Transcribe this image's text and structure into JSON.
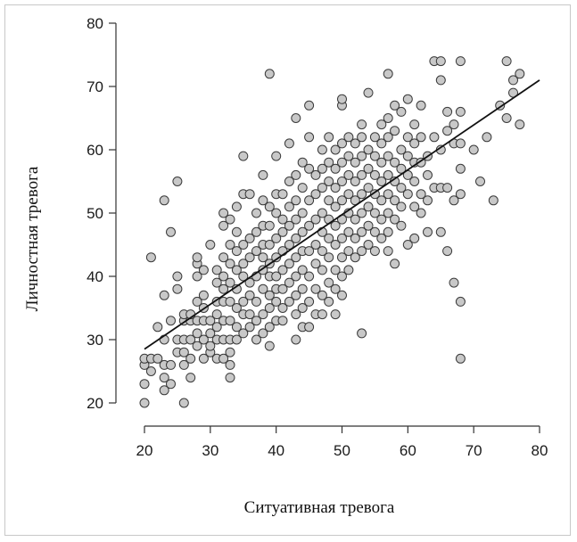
{
  "chart_data": {
    "type": "scatter",
    "xlabel": "Ситуативная тревога",
    "ylabel": "Личностная тревога",
    "xlim": [
      20,
      80
    ],
    "ylim": [
      20,
      80
    ],
    "xticks": [
      "20",
      "30",
      "40",
      "50",
      "60",
      "70",
      "80"
    ],
    "yticks": [
      "20",
      "30",
      "40",
      "50",
      "60",
      "70",
      "80"
    ],
    "grid": false,
    "legend": "none",
    "point_color": "#c8c8c8",
    "point_edge_color": "#3a3a3a",
    "trend_line": {
      "x": [
        20,
        80
      ],
      "y": [
        28.5,
        71
      ]
    },
    "points": [
      [
        20,
        20
      ],
      [
        20,
        23
      ],
      [
        20,
        26
      ],
      [
        20,
        27
      ],
      [
        21,
        25
      ],
      [
        21,
        27
      ],
      [
        21,
        43
      ],
      [
        22,
        27
      ],
      [
        22,
        32
      ],
      [
        23,
        22
      ],
      [
        23,
        24
      ],
      [
        23,
        26
      ],
      [
        23,
        30
      ],
      [
        23,
        37
      ],
      [
        23,
        52
      ],
      [
        24,
        23
      ],
      [
        24,
        26
      ],
      [
        24,
        33
      ],
      [
        24,
        47
      ],
      [
        25,
        28
      ],
      [
        25,
        30
      ],
      [
        25,
        38
      ],
      [
        25,
        40
      ],
      [
        25,
        55
      ],
      [
        26,
        20
      ],
      [
        26,
        26
      ],
      [
        26,
        28
      ],
      [
        26,
        30
      ],
      [
        26,
        33
      ],
      [
        26,
        34
      ],
      [
        27,
        24
      ],
      [
        27,
        27
      ],
      [
        27,
        30
      ],
      [
        27,
        33
      ],
      [
        27,
        34
      ],
      [
        28,
        29
      ],
      [
        28,
        31
      ],
      [
        28,
        33
      ],
      [
        28,
        36
      ],
      [
        28,
        40
      ],
      [
        28,
        42
      ],
      [
        28,
        43
      ],
      [
        29,
        27
      ],
      [
        29,
        30
      ],
      [
        29,
        33
      ],
      [
        29,
        35
      ],
      [
        29,
        37
      ],
      [
        29,
        41
      ],
      [
        30,
        28
      ],
      [
        30,
        29
      ],
      [
        30,
        31
      ],
      [
        30,
        33
      ],
      [
        30,
        45
      ],
      [
        31,
        27
      ],
      [
        31,
        30
      ],
      [
        31,
        32
      ],
      [
        31,
        34
      ],
      [
        31,
        36
      ],
      [
        31,
        39
      ],
      [
        31,
        41
      ],
      [
        32,
        27
      ],
      [
        32,
        30
      ],
      [
        32,
        33
      ],
      [
        32,
        36
      ],
      [
        32,
        38
      ],
      [
        32,
        40
      ],
      [
        32,
        43
      ],
      [
        32,
        48
      ],
      [
        32,
        50
      ],
      [
        33,
        24
      ],
      [
        33,
        26
      ],
      [
        33,
        28
      ],
      [
        33,
        30
      ],
      [
        33,
        33
      ],
      [
        33,
        36
      ],
      [
        33,
        39
      ],
      [
        33,
        42
      ],
      [
        33,
        45
      ],
      [
        33,
        49
      ],
      [
        34,
        30
      ],
      [
        34,
        32
      ],
      [
        34,
        35
      ],
      [
        34,
        38
      ],
      [
        34,
        41
      ],
      [
        34,
        44
      ],
      [
        34,
        47
      ],
      [
        34,
        51
      ],
      [
        35,
        31
      ],
      [
        35,
        34
      ],
      [
        35,
        36
      ],
      [
        35,
        40
      ],
      [
        35,
        42
      ],
      [
        35,
        45
      ],
      [
        35,
        53
      ],
      [
        35,
        59
      ],
      [
        36,
        32
      ],
      [
        36,
        34
      ],
      [
        36,
        37
      ],
      [
        36,
        39
      ],
      [
        36,
        43
      ],
      [
        36,
        46
      ],
      [
        36,
        53
      ],
      [
        37,
        30
      ],
      [
        37,
        33
      ],
      [
        37,
        36
      ],
      [
        37,
        40
      ],
      [
        37,
        44
      ],
      [
        37,
        47
      ],
      [
        37,
        50
      ],
      [
        38,
        31
      ],
      [
        38,
        34
      ],
      [
        38,
        38
      ],
      [
        38,
        41
      ],
      [
        38,
        43
      ],
      [
        38,
        45
      ],
      [
        38,
        48
      ],
      [
        38,
        52
      ],
      [
        38,
        56
      ],
      [
        39,
        29
      ],
      [
        39,
        32
      ],
      [
        39,
        35
      ],
      [
        39,
        37
      ],
      [
        39,
        40
      ],
      [
        39,
        42
      ],
      [
        39,
        45
      ],
      [
        39,
        48
      ],
      [
        39,
        51
      ],
      [
        39,
        72
      ],
      [
        40,
        33
      ],
      [
        40,
        36
      ],
      [
        40,
        38
      ],
      [
        40,
        40
      ],
      [
        40,
        43
      ],
      [
        40,
        46
      ],
      [
        40,
        50
      ],
      [
        40,
        53
      ],
      [
        40,
        59
      ],
      [
        41,
        33
      ],
      [
        41,
        35
      ],
      [
        41,
        38
      ],
      [
        41,
        41
      ],
      [
        41,
        44
      ],
      [
        41,
        47
      ],
      [
        41,
        49
      ],
      [
        41,
        53
      ],
      [
        42,
        36
      ],
      [
        42,
        39
      ],
      [
        42,
        42
      ],
      [
        42,
        45
      ],
      [
        42,
        48
      ],
      [
        42,
        51
      ],
      [
        42,
        55
      ],
      [
        42,
        61
      ],
      [
        43,
        30
      ],
      [
        43,
        34
      ],
      [
        43,
        37
      ],
      [
        43,
        40
      ],
      [
        43,
        43
      ],
      [
        43,
        46
      ],
      [
        43,
        49
      ],
      [
        43,
        52
      ],
      [
        43,
        56
      ],
      [
        43,
        65
      ],
      [
        44,
        32
      ],
      [
        44,
        35
      ],
      [
        44,
        38
      ],
      [
        44,
        41
      ],
      [
        44,
        44
      ],
      [
        44,
        47
      ],
      [
        44,
        50
      ],
      [
        44,
        54
      ],
      [
        44,
        58
      ],
      [
        45,
        32
      ],
      [
        45,
        36
      ],
      [
        45,
        40
      ],
      [
        45,
        44
      ],
      [
        45,
        48
      ],
      [
        45,
        52
      ],
      [
        45,
        57
      ],
      [
        45,
        62
      ],
      [
        45,
        67
      ],
      [
        46,
        34
      ],
      [
        46,
        38
      ],
      [
        46,
        42
      ],
      [
        46,
        45
      ],
      [
        46,
        49
      ],
      [
        46,
        53
      ],
      [
        46,
        56
      ],
      [
        47,
        34
      ],
      [
        47,
        37
      ],
      [
        47,
        41
      ],
      [
        47,
        44
      ],
      [
        47,
        47
      ],
      [
        47,
        50
      ],
      [
        47,
        54
      ],
      [
        47,
        57
      ],
      [
        47,
        60
      ],
      [
        48,
        36
      ],
      [
        48,
        39
      ],
      [
        48,
        43
      ],
      [
        48,
        46
      ],
      [
        48,
        49
      ],
      [
        48,
        52
      ],
      [
        48,
        55
      ],
      [
        48,
        58
      ],
      [
        48,
        62
      ],
      [
        49,
        34
      ],
      [
        49,
        38
      ],
      [
        49,
        41
      ],
      [
        49,
        45
      ],
      [
        49,
        48
      ],
      [
        49,
        51
      ],
      [
        49,
        54
      ],
      [
        49,
        57
      ],
      [
        49,
        60
      ],
      [
        50,
        37
      ],
      [
        50,
        40
      ],
      [
        50,
        43
      ],
      [
        50,
        46
      ],
      [
        50,
        49
      ],
      [
        50,
        52
      ],
      [
        50,
        55
      ],
      [
        50,
        58
      ],
      [
        50,
        61
      ],
      [
        50,
        67
      ],
      [
        50,
        68
      ],
      [
        51,
        41
      ],
      [
        51,
        44
      ],
      [
        51,
        47
      ],
      [
        51,
        50
      ],
      [
        51,
        53
      ],
      [
        51,
        56
      ],
      [
        51,
        59
      ],
      [
        51,
        62
      ],
      [
        52,
        43
      ],
      [
        52,
        46
      ],
      [
        52,
        49
      ],
      [
        52,
        52
      ],
      [
        52,
        55
      ],
      [
        52,
        58
      ],
      [
        52,
        61
      ],
      [
        53,
        31
      ],
      [
        53,
        44
      ],
      [
        53,
        47
      ],
      [
        53,
        50
      ],
      [
        53,
        53
      ],
      [
        53,
        56
      ],
      [
        53,
        59
      ],
      [
        53,
        62
      ],
      [
        53,
        64
      ],
      [
        54,
        45
      ],
      [
        54,
        48
      ],
      [
        54,
        51
      ],
      [
        54,
        54
      ],
      [
        54,
        57
      ],
      [
        54,
        60
      ],
      [
        54,
        69
      ],
      [
        55,
        44
      ],
      [
        55,
        47
      ],
      [
        55,
        50
      ],
      [
        55,
        53
      ],
      [
        55,
        56
      ],
      [
        55,
        59
      ],
      [
        55,
        62
      ],
      [
        56,
        46
      ],
      [
        56,
        49
      ],
      [
        56,
        52
      ],
      [
        56,
        55
      ],
      [
        56,
        58
      ],
      [
        56,
        61
      ],
      [
        56,
        64
      ],
      [
        57,
        44
      ],
      [
        57,
        47
      ],
      [
        57,
        50
      ],
      [
        57,
        53
      ],
      [
        57,
        56
      ],
      [
        57,
        59
      ],
      [
        57,
        62
      ],
      [
        57,
        65
      ],
      [
        57,
        72
      ],
      [
        58,
        42
      ],
      [
        58,
        49
      ],
      [
        58,
        52
      ],
      [
        58,
        55
      ],
      [
        58,
        58
      ],
      [
        58,
        63
      ],
      [
        58,
        67
      ],
      [
        59,
        48
      ],
      [
        59,
        51
      ],
      [
        59,
        54
      ],
      [
        59,
        57
      ],
      [
        59,
        60
      ],
      [
        59,
        66
      ],
      [
        60,
        45
      ],
      [
        60,
        53
      ],
      [
        60,
        56
      ],
      [
        60,
        59
      ],
      [
        60,
        62
      ],
      [
        60,
        68
      ],
      [
        61,
        46
      ],
      [
        61,
        51
      ],
      [
        61,
        55
      ],
      [
        61,
        58
      ],
      [
        61,
        61
      ],
      [
        61,
        64
      ],
      [
        62,
        50
      ],
      [
        62,
        53
      ],
      [
        62,
        58
      ],
      [
        62,
        62
      ],
      [
        62,
        67
      ],
      [
        63,
        47
      ],
      [
        63,
        52
      ],
      [
        63,
        56
      ],
      [
        63,
        59
      ],
      [
        64,
        54
      ],
      [
        64,
        62
      ],
      [
        64,
        74
      ],
      [
        65,
        47
      ],
      [
        65,
        54
      ],
      [
        65,
        60
      ],
      [
        65,
        71
      ],
      [
        65,
        74
      ],
      [
        66,
        44
      ],
      [
        66,
        54
      ],
      [
        66,
        63
      ],
      [
        66,
        66
      ],
      [
        67,
        39
      ],
      [
        67,
        52
      ],
      [
        67,
        61
      ],
      [
        67,
        64
      ],
      [
        68,
        27
      ],
      [
        68,
        36
      ],
      [
        68,
        53
      ],
      [
        68,
        57
      ],
      [
        68,
        61
      ],
      [
        68,
        66
      ],
      [
        68,
        74
      ],
      [
        70,
        60
      ],
      [
        71,
        55
      ],
      [
        72,
        62
      ],
      [
        73,
        52
      ],
      [
        74,
        67
      ],
      [
        75,
        65
      ],
      [
        75,
        74
      ],
      [
        76,
        69
      ],
      [
        76,
        71
      ],
      [
        77,
        64
      ],
      [
        77,
        72
      ]
    ]
  }
}
